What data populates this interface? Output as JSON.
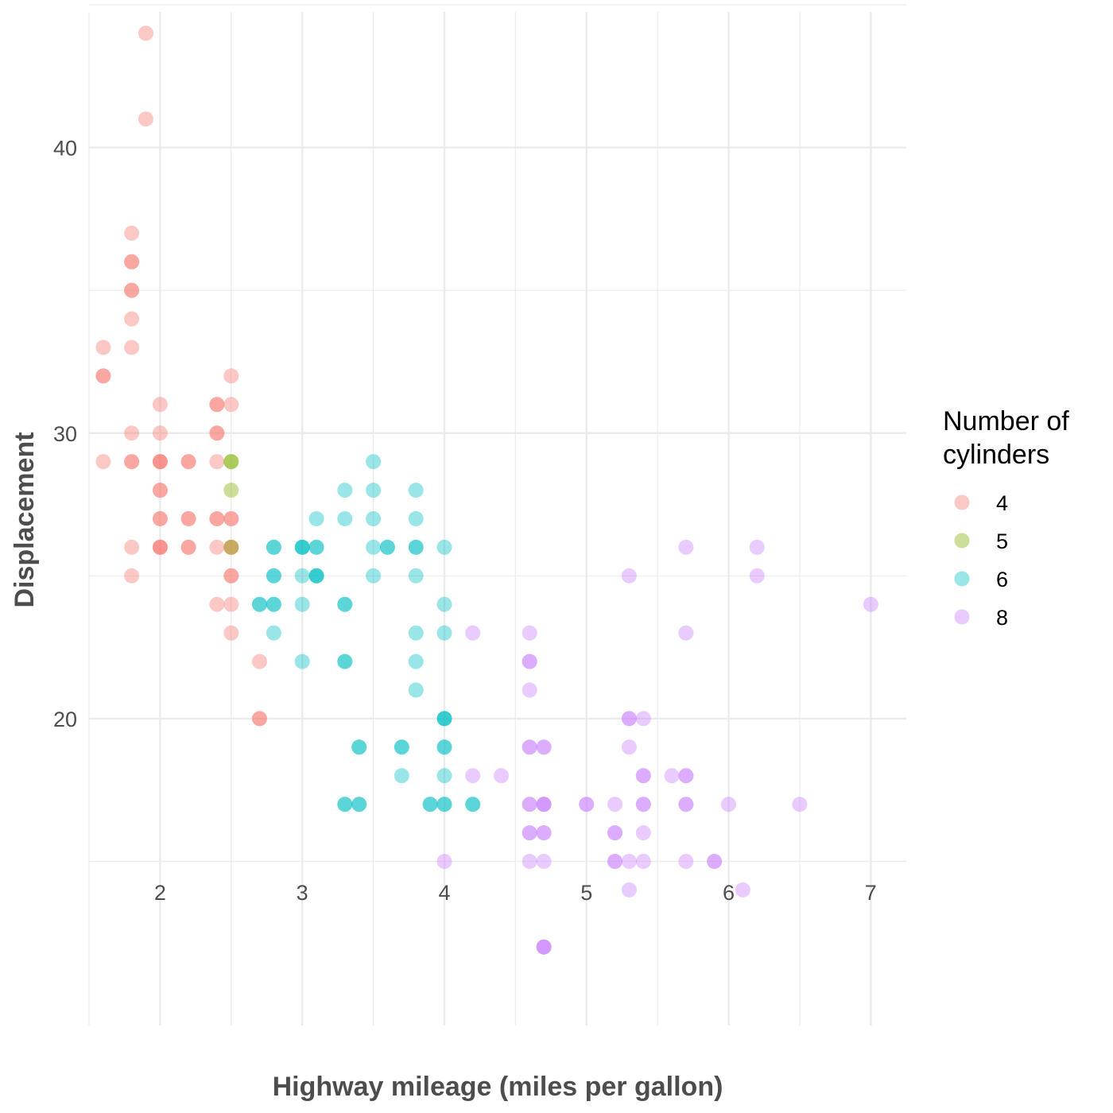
{
  "chart_data": {
    "type": "scatter",
    "title": "",
    "xlabel": "Highway mileage (miles per gallon)",
    "ylabel": "Displacement",
    "xlim": [
      1.5,
      7.25
    ],
    "ylim": [
      9.25,
      44.75
    ],
    "x_ticks": [
      2,
      3,
      4,
      5,
      6,
      7
    ],
    "y_ticks": [
      20,
      30,
      40
    ],
    "x_tick_labels": [
      "2",
      "3",
      "4",
      "5",
      "6",
      "7"
    ],
    "y_tick_labels": [
      "20",
      "30",
      "40"
    ],
    "grid": true,
    "legend": {
      "title_lines": [
        "Number of",
        "cylinders"
      ],
      "position": "right"
    },
    "series": [
      {
        "name": "4",
        "color": "#F8766D",
        "points": [
          [
            1.9,
            44
          ],
          [
            1.9,
            41
          ],
          [
            1.8,
            37
          ],
          [
            1.8,
            36
          ],
          [
            1.8,
            36
          ],
          [
            1.8,
            35
          ],
          [
            1.8,
            35
          ],
          [
            1.8,
            34
          ],
          [
            1.6,
            33
          ],
          [
            1.8,
            33
          ],
          [
            1.6,
            32
          ],
          [
            1.6,
            32
          ],
          [
            2.5,
            32
          ],
          [
            2.0,
            31
          ],
          [
            2.4,
            31
          ],
          [
            2.4,
            31
          ],
          [
            2.5,
            31
          ],
          [
            1.8,
            30
          ],
          [
            2.0,
            30
          ],
          [
            2.4,
            30
          ],
          [
            2.4,
            30
          ],
          [
            1.6,
            29
          ],
          [
            1.8,
            29
          ],
          [
            1.8,
            29
          ],
          [
            2.0,
            29
          ],
          [
            2.0,
            29
          ],
          [
            2.0,
            29
          ],
          [
            2.2,
            29
          ],
          [
            2.2,
            29
          ],
          [
            2.4,
            29
          ],
          [
            2.0,
            28
          ],
          [
            2.0,
            28
          ],
          [
            2.0,
            27
          ],
          [
            2.0,
            27
          ],
          [
            2.2,
            27
          ],
          [
            2.2,
            27
          ],
          [
            2.4,
            27
          ],
          [
            2.4,
            27
          ],
          [
            2.5,
            27
          ],
          [
            2.5,
            27
          ],
          [
            1.8,
            26
          ],
          [
            2.0,
            26
          ],
          [
            2.0,
            26
          ],
          [
            2.0,
            26
          ],
          [
            2.2,
            26
          ],
          [
            2.2,
            26
          ],
          [
            2.4,
            26
          ],
          [
            2.5,
            26
          ],
          [
            2.5,
            26
          ],
          [
            1.8,
            25
          ],
          [
            2.5,
            25
          ],
          [
            2.5,
            25
          ],
          [
            2.4,
            24
          ],
          [
            2.5,
            24
          ],
          [
            2.5,
            23
          ],
          [
            2.7,
            22
          ],
          [
            2.7,
            20
          ],
          [
            2.7,
            20
          ]
        ]
      },
      {
        "name": "5",
        "color": "#7CAE00",
        "points": [
          [
            2.5,
            29
          ],
          [
            2.5,
            29
          ],
          [
            2.5,
            28
          ],
          [
            2.5,
            26
          ]
        ]
      },
      {
        "name": "6",
        "color": "#00BFC4",
        "points": [
          [
            3.5,
            29
          ],
          [
            3.3,
            28
          ],
          [
            3.5,
            28
          ],
          [
            3.8,
            28
          ],
          [
            3.1,
            27
          ],
          [
            3.3,
            27
          ],
          [
            3.5,
            27
          ],
          [
            3.8,
            27
          ],
          [
            2.8,
            26
          ],
          [
            2.8,
            26
          ],
          [
            3.0,
            26
          ],
          [
            3.0,
            26
          ],
          [
            3.0,
            26
          ],
          [
            3.1,
            26
          ],
          [
            3.1,
            26
          ],
          [
            3.5,
            26
          ],
          [
            3.6,
            26
          ],
          [
            3.6,
            26
          ],
          [
            3.8,
            26
          ],
          [
            3.8,
            26
          ],
          [
            4.0,
            26
          ],
          [
            2.8,
            25
          ],
          [
            2.8,
            25
          ],
          [
            3.0,
            25
          ],
          [
            3.1,
            25
          ],
          [
            3.1,
            25
          ],
          [
            3.1,
            25
          ],
          [
            3.5,
            25
          ],
          [
            3.8,
            25
          ],
          [
            2.7,
            24
          ],
          [
            2.7,
            24
          ],
          [
            2.8,
            24
          ],
          [
            2.8,
            24
          ],
          [
            3.0,
            24
          ],
          [
            3.3,
            24
          ],
          [
            3.3,
            24
          ],
          [
            4.0,
            24
          ],
          [
            2.8,
            23
          ],
          [
            3.8,
            23
          ],
          [
            4.0,
            23
          ],
          [
            3.0,
            22
          ],
          [
            3.3,
            22
          ],
          [
            3.3,
            22
          ],
          [
            3.8,
            22
          ],
          [
            3.8,
            21
          ],
          [
            4.0,
            20
          ],
          [
            4.0,
            20
          ],
          [
            4.0,
            20
          ],
          [
            3.4,
            19
          ],
          [
            3.4,
            19
          ],
          [
            3.7,
            19
          ],
          [
            3.7,
            19
          ],
          [
            4.0,
            19
          ],
          [
            4.0,
            19
          ],
          [
            3.7,
            18
          ],
          [
            4.0,
            18
          ],
          [
            3.3,
            17
          ],
          [
            3.3,
            17
          ],
          [
            3.4,
            17
          ],
          [
            3.4,
            17
          ],
          [
            3.9,
            17
          ],
          [
            3.9,
            17
          ],
          [
            4.0,
            17
          ],
          [
            4.0,
            17
          ],
          [
            4.2,
            17
          ],
          [
            4.2,
            17
          ]
        ]
      },
      {
        "name": "8",
        "color": "#C77CFF",
        "points": [
          [
            5.7,
            26
          ],
          [
            6.2,
            26
          ],
          [
            5.3,
            25
          ],
          [
            6.2,
            25
          ],
          [
            7.0,
            24
          ],
          [
            4.2,
            23
          ],
          [
            4.6,
            23
          ],
          [
            5.7,
            23
          ],
          [
            4.6,
            22
          ],
          [
            4.6,
            22
          ],
          [
            4.6,
            21
          ],
          [
            5.3,
            20
          ],
          [
            5.3,
            20
          ],
          [
            5.4,
            20
          ],
          [
            4.6,
            19
          ],
          [
            4.6,
            19
          ],
          [
            4.7,
            19
          ],
          [
            4.7,
            19
          ],
          [
            5.3,
            19
          ],
          [
            4.2,
            18
          ],
          [
            4.4,
            18
          ],
          [
            5.4,
            18
          ],
          [
            5.4,
            18
          ],
          [
            5.6,
            18
          ],
          [
            5.7,
            18
          ],
          [
            5.7,
            18
          ],
          [
            4.6,
            17
          ],
          [
            4.6,
            17
          ],
          [
            4.7,
            17
          ],
          [
            4.7,
            17
          ],
          [
            4.7,
            17
          ],
          [
            5.0,
            17
          ],
          [
            5.0,
            17
          ],
          [
            5.2,
            17
          ],
          [
            5.4,
            17
          ],
          [
            5.4,
            17
          ],
          [
            5.7,
            17
          ],
          [
            5.7,
            17
          ],
          [
            6.0,
            17
          ],
          [
            6.5,
            17
          ],
          [
            4.6,
            16
          ],
          [
            4.6,
            16
          ],
          [
            4.7,
            16
          ],
          [
            4.7,
            16
          ],
          [
            5.2,
            16
          ],
          [
            5.2,
            16
          ],
          [
            5.4,
            16
          ],
          [
            4.0,
            15
          ],
          [
            4.6,
            15
          ],
          [
            4.7,
            15
          ],
          [
            5.2,
            15
          ],
          [
            5.2,
            15
          ],
          [
            5.3,
            15
          ],
          [
            5.4,
            15
          ],
          [
            5.7,
            15
          ],
          [
            5.9,
            15
          ],
          [
            5.9,
            15
          ],
          [
            5.3,
            14
          ],
          [
            6.1,
            14
          ],
          [
            4.7,
            12
          ],
          [
            4.7,
            12
          ],
          [
            4.7,
            12
          ]
        ]
      }
    ]
  }
}
